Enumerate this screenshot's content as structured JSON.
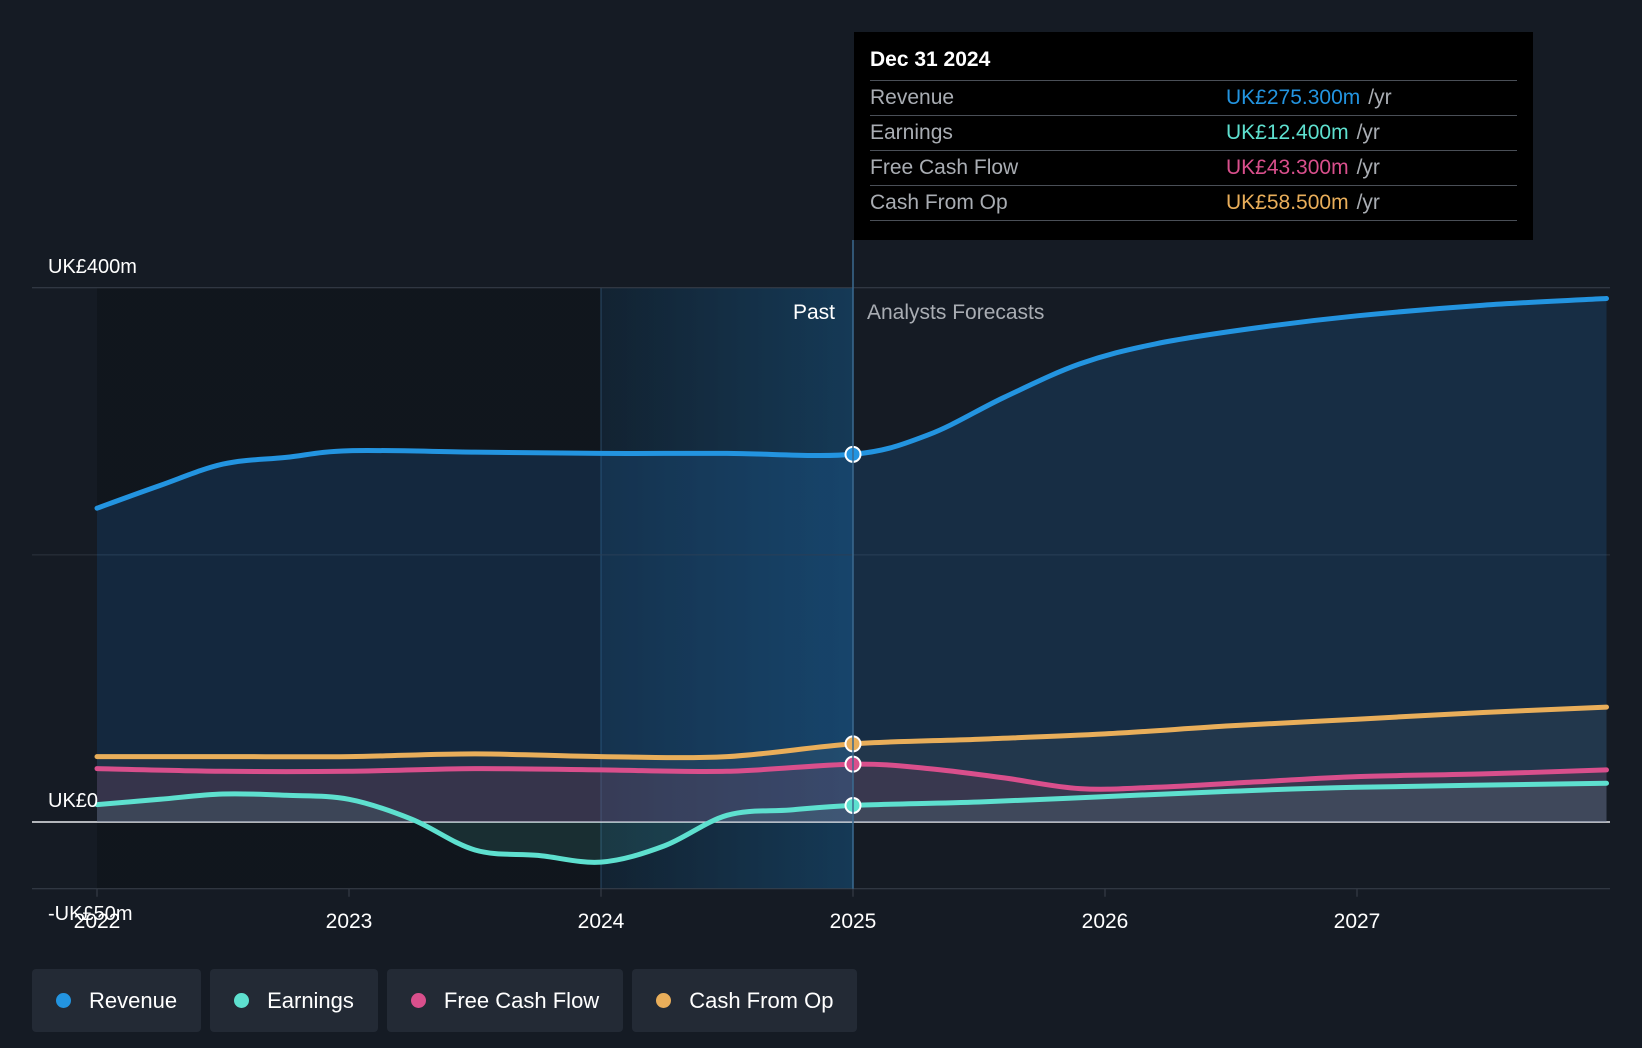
{
  "chart_data": {
    "type": "line",
    "title": "",
    "y_tick_labels": [
      "UK£400m",
      "UK£0",
      "-UK£50m"
    ],
    "ylim": [
      -50,
      400
    ],
    "x_tick_labels": [
      "2022",
      "2023",
      "2024",
      "2025",
      "2026",
      "2027"
    ],
    "xlim": [
      2022,
      2028
    ],
    "past_label": "Past",
    "forecast_label": "Analysts Forecasts",
    "divider_x": 2025,
    "series": [
      {
        "name": "Revenue",
        "color": "#2394e0",
        "points": [
          [
            2022,
            235
          ],
          [
            2022.25,
            252
          ],
          [
            2022.5,
            268
          ],
          [
            2022.75,
            273
          ],
          [
            2023,
            278
          ],
          [
            2023.5,
            277
          ],
          [
            2024,
            276
          ],
          [
            2024.5,
            276
          ],
          [
            2025,
            275.3
          ],
          [
            2025.3,
            290
          ],
          [
            2025.6,
            318
          ],
          [
            2025.9,
            343
          ],
          [
            2026.2,
            358
          ],
          [
            2026.6,
            370
          ],
          [
            2027,
            379
          ],
          [
            2027.5,
            387
          ],
          [
            2027.99,
            392
          ]
        ]
      },
      {
        "name": "Earnings",
        "color": "#5ee0cf",
        "points": [
          [
            2022,
            13
          ],
          [
            2022.25,
            17
          ],
          [
            2022.5,
            21
          ],
          [
            2022.75,
            20
          ],
          [
            2023,
            17
          ],
          [
            2023.25,
            2
          ],
          [
            2023.5,
            -21
          ],
          [
            2023.75,
            -25
          ],
          [
            2024,
            -30
          ],
          [
            2024.25,
            -18
          ],
          [
            2024.5,
            5
          ],
          [
            2024.75,
            9
          ],
          [
            2025,
            12.4
          ],
          [
            2025.5,
            15
          ],
          [
            2026,
            19
          ],
          [
            2026.5,
            23
          ],
          [
            2027,
            26
          ],
          [
            2027.99,
            29
          ]
        ]
      },
      {
        "name": "Free Cash Flow",
        "color": "#d94f8c",
        "points": [
          [
            2022,
            40
          ],
          [
            2022.5,
            38
          ],
          [
            2023,
            38
          ],
          [
            2023.5,
            40
          ],
          [
            2024,
            39
          ],
          [
            2024.5,
            38
          ],
          [
            2025,
            43.3
          ],
          [
            2025.3,
            40
          ],
          [
            2025.6,
            33
          ],
          [
            2025.9,
            25
          ],
          [
            2026.2,
            26
          ],
          [
            2026.6,
            30
          ],
          [
            2027,
            34
          ],
          [
            2027.5,
            36
          ],
          [
            2027.99,
            39
          ]
        ]
      },
      {
        "name": "Cash From Op",
        "color": "#e9ae5a",
        "points": [
          [
            2022,
            49
          ],
          [
            2022.5,
            49
          ],
          [
            2023,
            49
          ],
          [
            2023.5,
            51
          ],
          [
            2024,
            49
          ],
          [
            2024.5,
            49
          ],
          [
            2025,
            58.5
          ],
          [
            2025.5,
            62
          ],
          [
            2026,
            66
          ],
          [
            2026.5,
            72
          ],
          [
            2027,
            77
          ],
          [
            2027.5,
            82
          ],
          [
            2027.99,
            86
          ]
        ]
      }
    ],
    "tooltip": {
      "date": "Dec 31 2024",
      "unit": "/yr",
      "rows": [
        {
          "name": "Revenue",
          "value": "UK£275.300m",
          "color": "#2394e0"
        },
        {
          "name": "Earnings",
          "value": "UK£12.400m",
          "color": "#5ee0cf"
        },
        {
          "name": "Free Cash Flow",
          "value": "UK£43.300m",
          "color": "#d94f8c"
        },
        {
          "name": "Cash From Op",
          "value": "UK£58.500m",
          "color": "#e9ae5a"
        }
      ]
    }
  },
  "legend": [
    {
      "label": "Revenue",
      "color": "#2394e0"
    },
    {
      "label": "Earnings",
      "color": "#5ee0cf"
    },
    {
      "label": "Free Cash Flow",
      "color": "#d94f8c"
    },
    {
      "label": "Cash From Op",
      "color": "#e9ae5a"
    }
  ]
}
